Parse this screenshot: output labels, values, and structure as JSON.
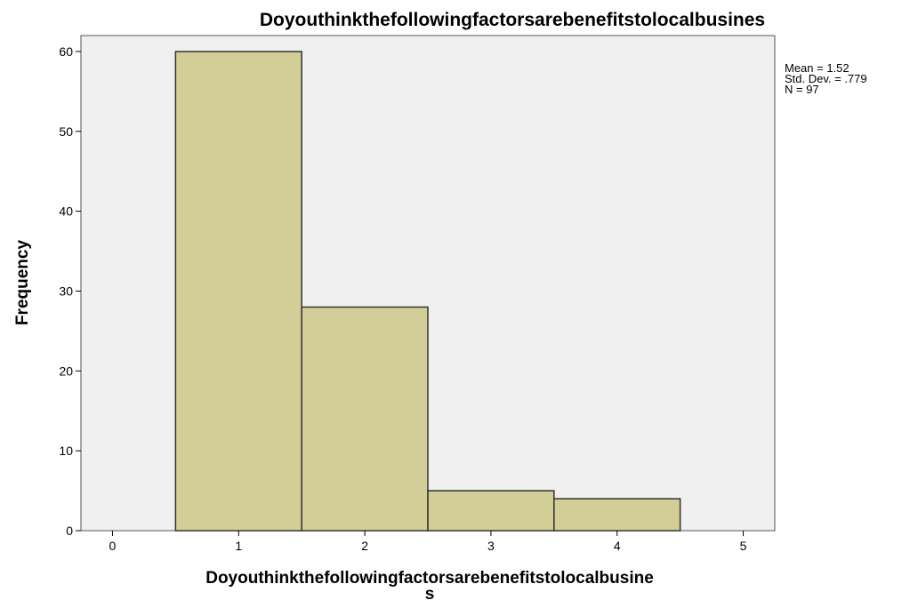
{
  "chart_data": {
    "type": "bar",
    "subtype": "histogram",
    "title": "Doyouthinkthefollowingfactorsarebenefitstolocalbusines",
    "xlabel_line1": "Doyouthinkthefollowingfactorsarebenefitstolocalbusine",
    "xlabel_line2": "s",
    "ylabel": "Frequency",
    "xlim": [
      -0.25,
      5.25
    ],
    "ylim": [
      0,
      62
    ],
    "xticks": [
      0,
      1,
      2,
      3,
      4,
      5
    ],
    "yticks": [
      0,
      10,
      20,
      30,
      40,
      50,
      60
    ],
    "bins": [
      {
        "x0": 0.5,
        "x1": 1.5,
        "value": 60
      },
      {
        "x0": 1.5,
        "x1": 2.5,
        "value": 28
      },
      {
        "x0": 2.5,
        "x1": 3.5,
        "value": 5
      },
      {
        "x0": 3.5,
        "x1": 4.5,
        "value": 4
      }
    ],
    "stats": [
      "Mean = 1.52",
      "Std. Dev. = .779",
      "N = 97"
    ],
    "grid": false,
    "colors": {
      "bar_fill": "#d3cd97",
      "bar_stroke": "#333333",
      "plot_background": "#f0f0f0"
    }
  }
}
